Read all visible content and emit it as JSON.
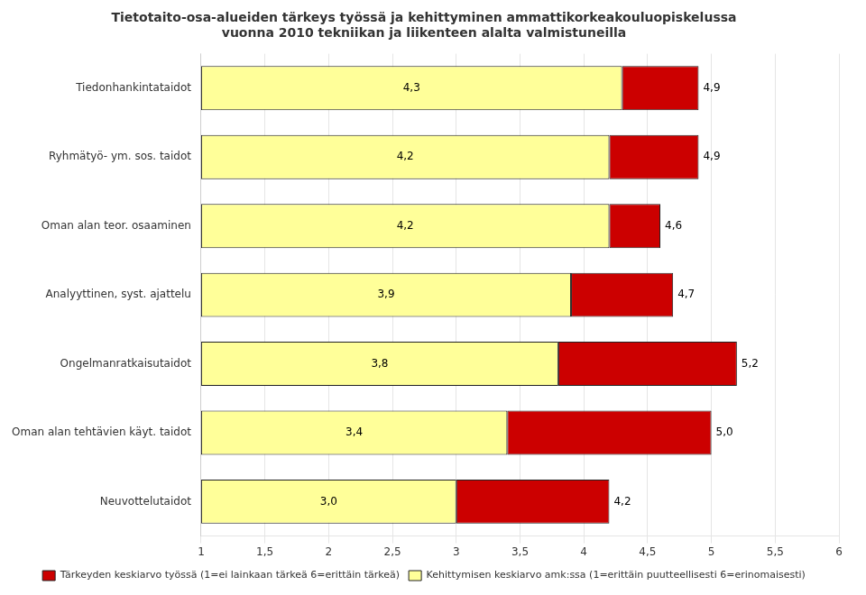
{
  "chart_data": {
    "type": "bar",
    "orientation": "horizontal",
    "title": "Tietotaito-osa-alueiden tärkeys työssä ja kehittyminen ammattikorkeakouluopiskelussa\nvuonna 2010 tekniikan ja liikenteen alalta valmistuneilla",
    "categories": [
      "Tiedonhankintataidot",
      "Ryhmätyö- ym. sos. taidot",
      "Oman alan teor. osaaminen",
      "Analyyttinen, syst. ajattelu",
      "Ongelmanratkaisutaidot",
      "Oman alan tehtävien käyt. taidot",
      "Neuvottelutaidot"
    ],
    "series": [
      {
        "name": "Tärkeyden keskiarvo työssä (1=ei lainkaan tärkeä 6=erittäin tärkeä)",
        "color": "#CC0000",
        "values": [
          4.9,
          4.9,
          4.6,
          4.7,
          5.2,
          5.0,
          4.2
        ],
        "value_labels": [
          "4,9",
          "4,9",
          "4,6",
          "4,7",
          "5,2",
          "5,0",
          "4,2"
        ]
      },
      {
        "name": "Kehittymisen keskiarvo amk:ssa (1=erittäin puutteellisesti 6=erinomaisesti)",
        "color": "#FFFF99",
        "values": [
          4.3,
          4.2,
          4.2,
          3.9,
          3.8,
          3.4,
          3.0
        ],
        "value_labels": [
          "4,3",
          "4,2",
          "4,2",
          "3,9",
          "3,8",
          "3,4",
          "3,0"
        ]
      }
    ],
    "xlim": [
      1,
      6
    ],
    "xticks": [
      1,
      {
        "value": 1.5,
        "label": "1,5"
      },
      2,
      {
        "value": 2.5,
        "label": "2,5"
      },
      3,
      {
        "value": 3.5,
        "label": "3,5"
      },
      4,
      {
        "value": 4.5,
        "label": "4,5"
      },
      5,
      {
        "value": 5.5,
        "label": "5,5"
      },
      6
    ],
    "grid": "x",
    "legend": "bottom",
    "data_labels": true
  }
}
